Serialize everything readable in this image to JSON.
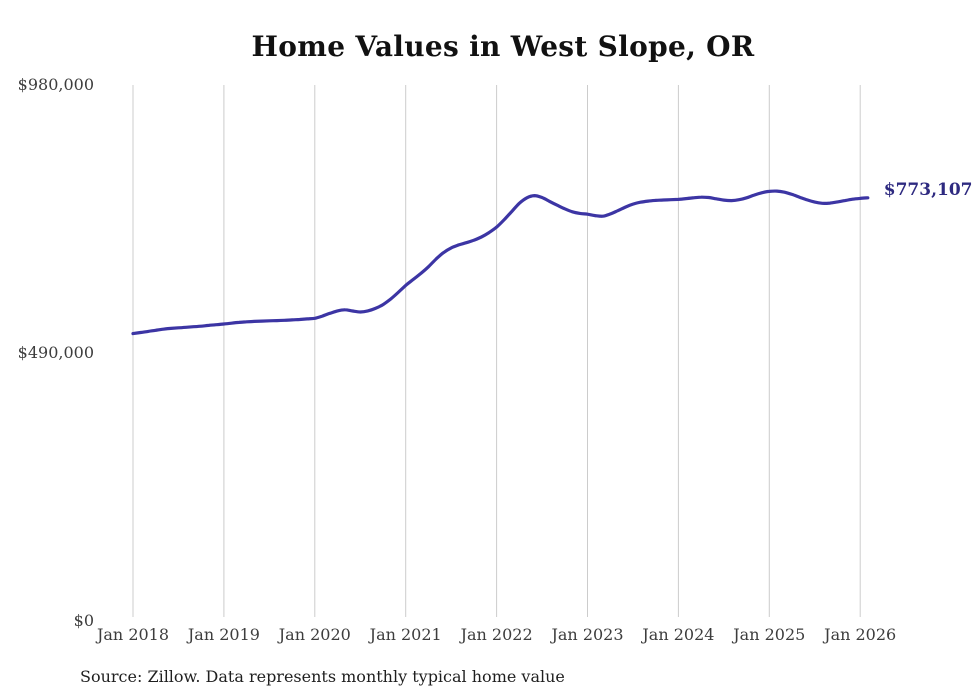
{
  "header": {
    "title": "Home Values in West Slope, OR"
  },
  "footer": {
    "source_note": "Source: Zillow. Data represents monthly typical home value"
  },
  "colors": {
    "background": "#ffffff",
    "line": "#3c35a4",
    "end_label": "#2e2a80",
    "grid": "#cccccc",
    "tick_text": "#3d3d3d",
    "title_text": "#111111",
    "source_text": "#1f1f1f"
  },
  "chart_data": {
    "type": "line",
    "title": "Home Values in West Slope, OR",
    "xlabel": "",
    "ylabel": "",
    "ylim": [
      0,
      980000
    ],
    "grid": "vertical-only",
    "legend": "none",
    "x_ticks": [
      "Jan 2018",
      "Jan 2019",
      "Jan 2020",
      "Jan 2021",
      "Jan 2022",
      "Jan 2023",
      "Jan 2024",
      "Jan 2025",
      "Jan 2026"
    ],
    "y_ticks": [
      {
        "label": "$0",
        "value": 0
      },
      {
        "label": "$490,000",
        "value": 490000
      },
      {
        "label": "$980,000",
        "value": 980000
      }
    ],
    "end_label": "$773,107",
    "end_value": 773107,
    "series": [
      {
        "name": "Monthly typical home value",
        "start_month": "2018-01",
        "months_per_point": 1,
        "color": "#3c35a4",
        "values": [
          525000,
          527000,
          529000,
          531000,
          533000,
          534500,
          535500,
          536500,
          537500,
          538500,
          540000,
          541200,
          542500,
          544000,
          545500,
          546500,
          547200,
          547800,
          548300,
          548800,
          549300,
          550000,
          550800,
          551800,
          553000,
          557000,
          562000,
          566500,
          568500,
          566200,
          564500,
          566500,
          571000,
          578000,
          588000,
          600000,
          613000,
          624000,
          635000,
          647000,
          661000,
          673000,
          681500,
          687000,
          691000,
          695500,
          701500,
          709500,
          719500,
          733000,
          748000,
          763000,
          773000,
          777000,
          773500,
          766500,
          759500,
          753000,
          747500,
          744500,
          743000,
          740500,
          739500,
          743500,
          749500,
          756000,
          761500,
          765000,
          767000,
          768200,
          769000,
          769600,
          770200,
          771500,
          773000,
          774200,
          773500,
          771200,
          768800,
          768000,
          769500,
          773000,
          778000,
          782200,
          784800,
          785200,
          783200,
          779200,
          774200,
          769200,
          765200,
          763000,
          763400,
          765500,
          768000,
          770500,
          772000,
          773107
        ]
      }
    ],
    "source": "Source: Zillow. Data represents monthly typical home value"
  }
}
